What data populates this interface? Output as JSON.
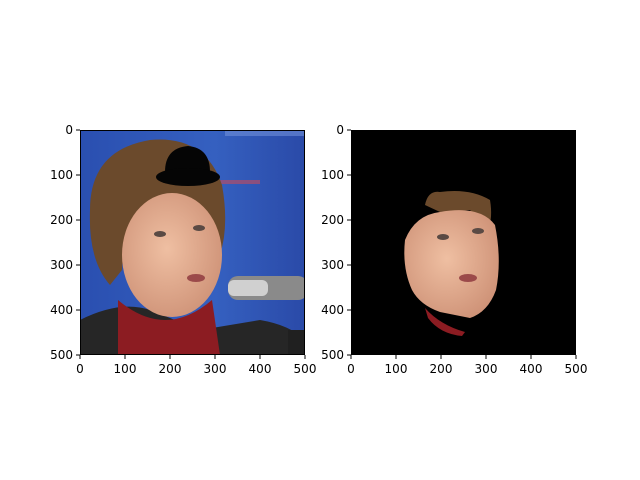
{
  "chart_data": [
    {
      "type": "image",
      "panel": "left",
      "description_visible": "portrait photo with black hat overlay",
      "xlim": [
        0,
        500
      ],
      "ylim": [
        500,
        0
      ],
      "xticks": [
        0,
        100,
        200,
        300,
        400,
        500
      ],
      "yticks": [
        0,
        100,
        200,
        300,
        400,
        500
      ],
      "overlay": "hat"
    },
    {
      "type": "image",
      "panel": "right",
      "description_visible": "segmented face on black background",
      "xlim": [
        0,
        500
      ],
      "ylim": [
        500,
        0
      ],
      "xticks": [
        0,
        100,
        200,
        300,
        400,
        500
      ],
      "yticks": [
        0,
        100,
        200,
        300,
        400,
        500
      ]
    }
  ],
  "colors": {
    "background_blue": "#2f58b5",
    "hair": "#6b4a2c",
    "skin": "#e0a888",
    "sweater": "#8c1c22",
    "jacket": "#262626",
    "hat": "#050505",
    "mask_bg": "#000000"
  }
}
